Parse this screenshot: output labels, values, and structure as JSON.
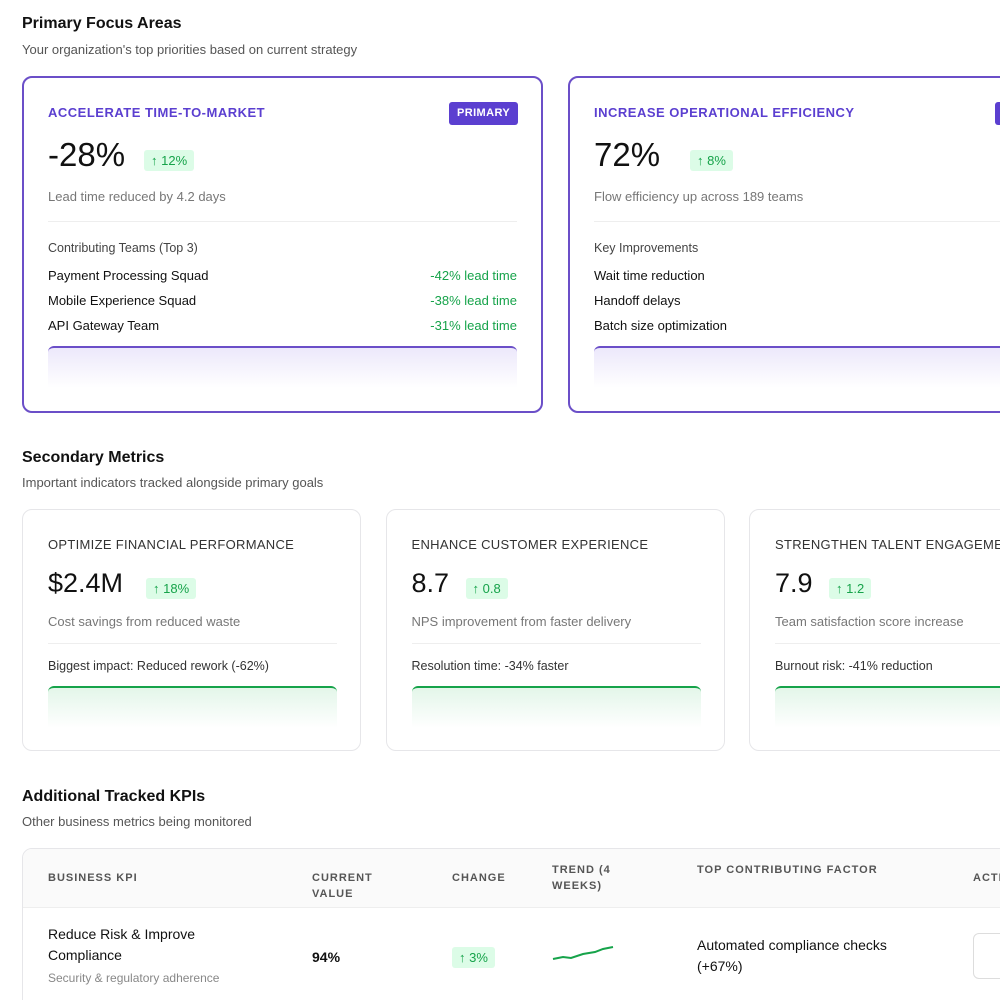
{
  "primary_section": {
    "title": "Primary Focus Areas",
    "subtitle": "Your organization's top priorities based on current strategy",
    "cards": [
      {
        "label": "ACCELERATE TIME-TO-MARKET",
        "badge": "PRIMARY",
        "value": "-28%",
        "change": "↑ 12%",
        "description": "Lead time reduced by 4.2 days",
        "list_title": "Contributing Teams (Top 3)",
        "rows": [
          {
            "name": "Payment Processing Squad",
            "value": "-42% lead time"
          },
          {
            "name": "Mobile Experience Squad",
            "value": "-38% lead time"
          },
          {
            "name": "API Gateway Team",
            "value": "-31% lead time"
          }
        ]
      },
      {
        "label": "INCREASE OPERATIONAL EFFICIENCY",
        "value": "72%",
        "change": "↑ 8%",
        "description": "Flow efficiency up across 189 teams",
        "list_title": "Key Improvements",
        "rows": [
          {
            "name": "Wait time reduction"
          },
          {
            "name": "Handoff delays"
          },
          {
            "name": "Batch size optimization"
          }
        ]
      }
    ]
  },
  "secondary_section": {
    "title": "Secondary Metrics",
    "subtitle": "Important indicators tracked alongside primary goals",
    "cards": [
      {
        "label": "OPTIMIZE FINANCIAL PERFORMANCE",
        "value": "$2.4M",
        "change": "↑ 18%",
        "description": "Cost savings from reduced waste",
        "note": "Biggest impact: Reduced rework (-62%)"
      },
      {
        "label": "ENHANCE CUSTOMER EXPERIENCE",
        "value": "8.7",
        "change": "↑ 0.8",
        "description": "NPS improvement from faster delivery",
        "note": "Resolution time: -34% faster"
      },
      {
        "label": "STRENGTHEN TALENT ENGAGEMENT",
        "value": "7.9",
        "change": "↑ 1.2",
        "description": "Team satisfaction score increase",
        "note": "Burnout risk: -41% reduction"
      }
    ]
  },
  "kpi_section": {
    "title": "Additional Tracked KPIs",
    "subtitle": "Other business metrics being monitored",
    "table": {
      "headers": [
        "BUSINESS KPI",
        "CURRENT VALUE",
        "CHANGE",
        "TREND (4 WEEKS)",
        "TOP CONTRIBUTING FACTOR",
        "ACTIONS"
      ],
      "rows": [
        {
          "name": "Reduce Risk & Improve Compliance",
          "detail": "Security & regulatory adherence",
          "value": "94%",
          "change": "↑ 3%",
          "factor": "Automated compliance checks (+67%)"
        }
      ]
    }
  }
}
